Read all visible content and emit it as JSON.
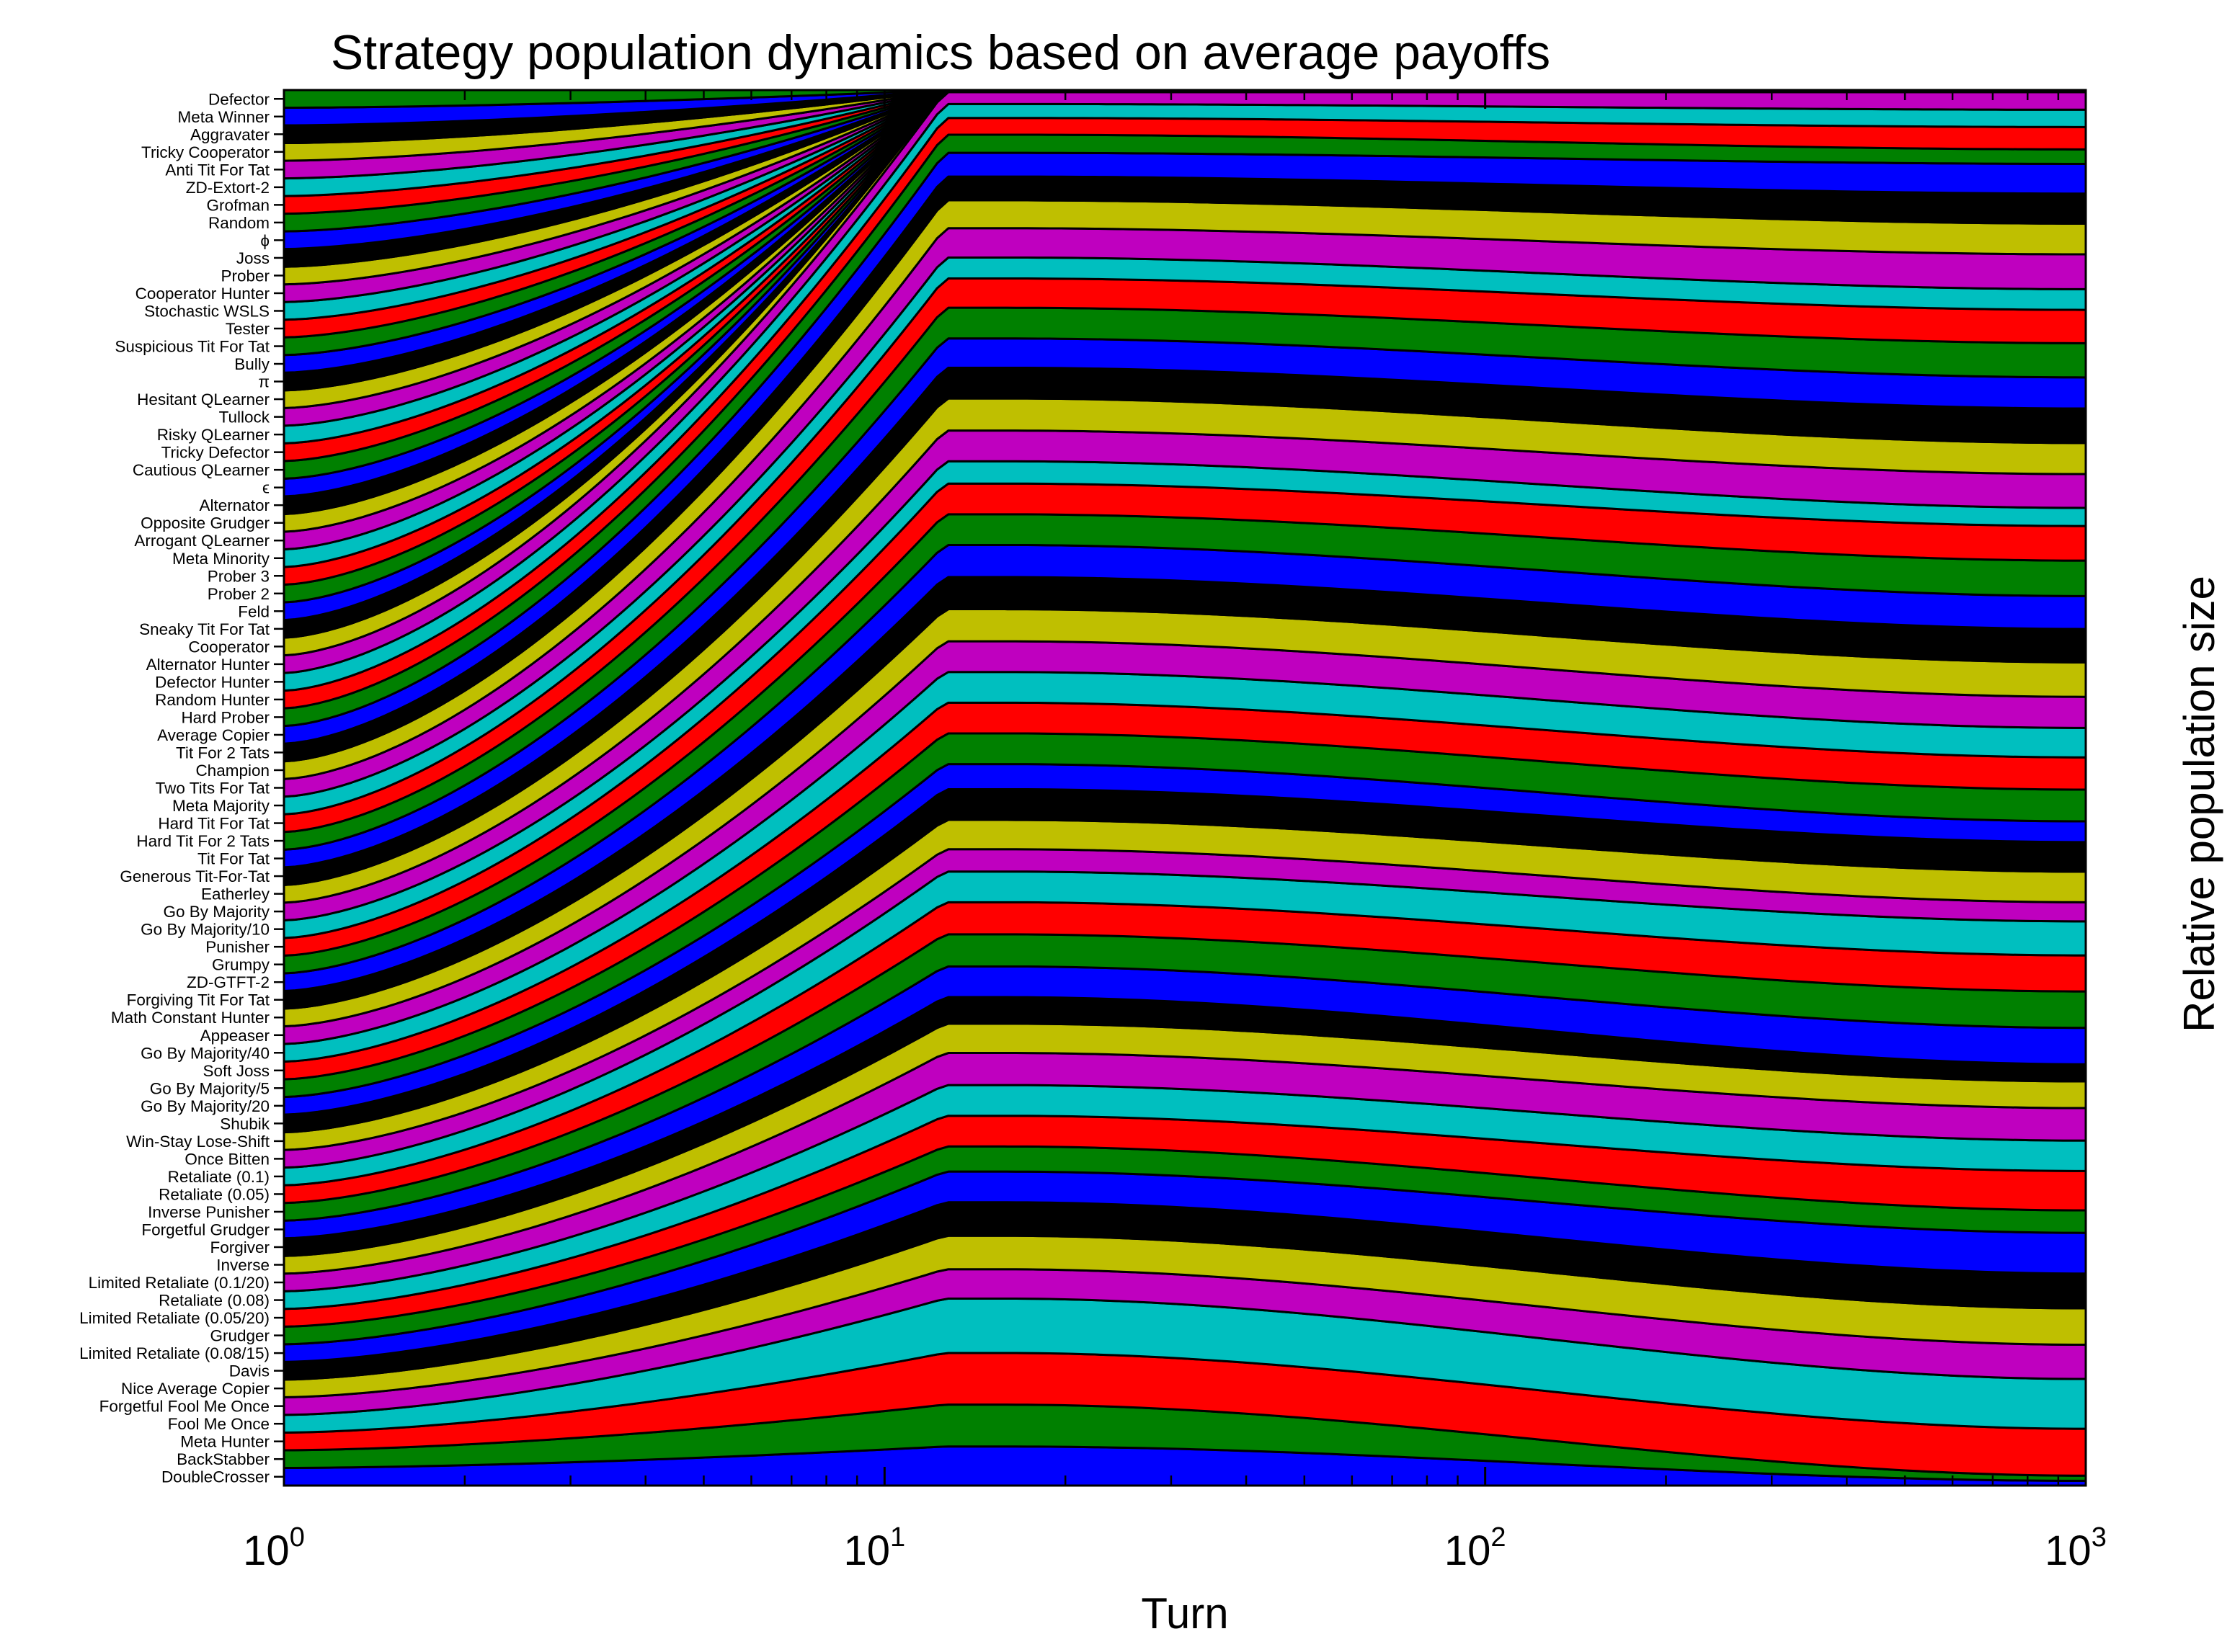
{
  "chart_data": {
    "type": "area",
    "stacked": true,
    "title": "Strategy population dynamics based on average payoffs",
    "xlabel": "Turn",
    "ylabel": "Relative population size",
    "xscale": "log",
    "xlim": [
      1,
      1000
    ],
    "ylim": [
      0,
      1
    ],
    "x": [
      1,
      2,
      3,
      5,
      7,
      10,
      15,
      20,
      30,
      50,
      100,
      200,
      500,
      1000
    ],
    "xticks": [
      {
        "value": 1,
        "base": "10",
        "exp": "0"
      },
      {
        "value": 10,
        "base": "10",
        "exp": "1"
      },
      {
        "value": 100,
        "base": "10",
        "exp": "2"
      },
      {
        "value": 1000,
        "base": "10",
        "exp": "3"
      }
    ],
    "grid": false,
    "legend": "left (labels beside stack bands)",
    "colors": [
      "#0000ff",
      "#008000",
      "#ff0000",
      "#00bfbf",
      "#bf00bf",
      "#bfbf00",
      "#000000"
    ],
    "series_bottom_to_top": [
      "DoubleCrosser",
      "BackStabber",
      "Meta Hunter",
      "Fool Me Once",
      "Forgetful Fool Me Once",
      "Nice Average Copier",
      "Davis",
      "Limited Retaliate (0.08/15)",
      "Grudger",
      "Limited Retaliate (0.05/20)",
      "Retaliate (0.08)",
      "Limited Retaliate (0.1/20)",
      "Inverse",
      "Forgiver",
      "Forgetful Grudger",
      "Inverse Punisher",
      "Retaliate (0.05)",
      "Retaliate (0.1)",
      "Once Bitten",
      "Win-Stay Lose-Shift",
      "Shubik",
      "Go By Majority/20",
      "Go By Majority/5",
      "Soft Joss",
      "Go By Majority/40",
      "Appeaser",
      "Math Constant Hunter",
      "Forgiving Tit For Tat",
      "ZD-GTFT-2",
      "Grumpy",
      "Punisher",
      "Go By Majority/10",
      "Go By Majority",
      "Eatherley",
      "Generous Tit-For-Tat",
      "Tit For Tat",
      "Hard Tit For 2 Tats",
      "Hard Tit For Tat",
      "Meta Majority",
      "Two Tits For Tat",
      "Champion",
      "Tit For 2 Tats",
      "Average Copier",
      "Hard Prober",
      "Random Hunter",
      "Defector Hunter",
      "Alternator Hunter",
      "Cooperator",
      "Sneaky Tit For Tat",
      "Feld",
      "Prober 2",
      "Prober 3",
      "Meta Minority",
      "Arrogant QLearner",
      "Opposite Grudger",
      "Alternator",
      "ϵ",
      "Cautious QLearner",
      "Tricky Defector",
      "Risky QLearner",
      "Tullock",
      "Hesitant QLearner",
      "π",
      "Bully",
      "Suspicious Tit For Tat",
      "Tester",
      "Stochastic WSLS",
      "Cooperator Hunter",
      "Prober",
      "Joss",
      "ϕ",
      "Random",
      "Grofman",
      "ZD-Extort-2",
      "Anti Tit For Tat",
      "Tricky Cooperator",
      "Aggravater",
      "Meta Winner",
      "Defector"
    ],
    "final_boundaries_bottom_to_top": [
      0,
      0.0034,
      0.0071,
      0.0407,
      0.0764,
      0.1009,
      0.127,
      0.1519,
      0.1811,
      0.1972,
      0.2254,
      0.2472,
      0.2705,
      0.2896,
      0.3019,
      0.328,
      0.3541,
      0.3799,
      0.4043,
      0.418,
      0.4399,
      0.4611,
      0.476,
      0.4987,
      0.5218,
      0.5429,
      0.5652,
      0.5899,
      0.6138,
      0.6374,
      0.6628,
      0.6876,
      0.7006,
      0.7248,
      0.7471,
      0.7718,
      0.7941,
      0.8186,
      0.8425,
      0.8573,
      0.8823,
      0.9043,
      0.9258,
      0.9471,
      0.9575,
      0.9735,
      0.9859,
      0.9985,
      1,
      1,
      1,
      1,
      1,
      1,
      1,
      1,
      1,
      1,
      1,
      1,
      1,
      1,
      1,
      1,
      1,
      1,
      1,
      1,
      1,
      1,
      1,
      1,
      1,
      1,
      1,
      1,
      1,
      1,
      1,
      1
    ],
    "peak_boundaries_bottom_to_top": [
      0,
      0.028,
      0.058,
      0.095,
      0.134,
      0.155,
      0.179,
      0.203,
      0.225,
      0.243,
      0.265,
      0.287,
      0.31,
      0.331,
      0.35,
      0.372,
      0.395,
      0.418,
      0.44,
      0.456,
      0.477,
      0.499,
      0.517,
      0.539,
      0.561,
      0.583,
      0.605,
      0.628,
      0.651,
      0.674,
      0.696,
      0.718,
      0.734,
      0.756,
      0.779,
      0.801,
      0.822,
      0.844,
      0.865,
      0.88,
      0.901,
      0.921,
      0.938,
      0.955,
      0.968,
      0.98,
      0.99,
      0.9985,
      1,
      1,
      1,
      1,
      1,
      1,
      1,
      1,
      1,
      1,
      1,
      1,
      1,
      1,
      1,
      1,
      1,
      1,
      1,
      1,
      1,
      1,
      1,
      1,
      1,
      1,
      1,
      1,
      1,
      1,
      1,
      1
    ]
  }
}
